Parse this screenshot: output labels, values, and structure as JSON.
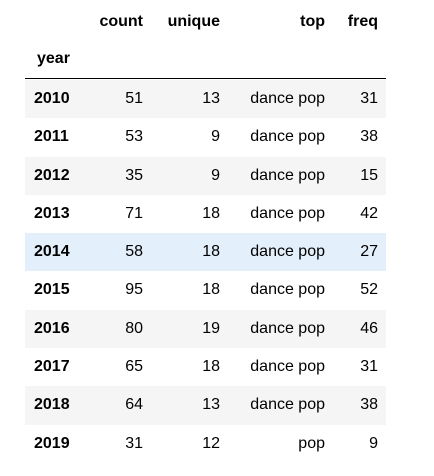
{
  "table": {
    "columns": [
      "count",
      "unique",
      "top",
      "freq"
    ],
    "index_name": "year",
    "rows": [
      {
        "year": "2010",
        "count": "51",
        "unique": "13",
        "top": "dance pop",
        "freq": "31"
      },
      {
        "year": "2011",
        "count": "53",
        "unique": "9",
        "top": "dance pop",
        "freq": "38"
      },
      {
        "year": "2012",
        "count": "35",
        "unique": "9",
        "top": "dance pop",
        "freq": "15"
      },
      {
        "year": "2013",
        "count": "71",
        "unique": "18",
        "top": "dance pop",
        "freq": "42"
      },
      {
        "year": "2014",
        "count": "58",
        "unique": "18",
        "top": "dance pop",
        "freq": "27"
      },
      {
        "year": "2015",
        "count": "95",
        "unique": "18",
        "top": "dance pop",
        "freq": "52"
      },
      {
        "year": "2016",
        "count": "80",
        "unique": "19",
        "top": "dance pop",
        "freq": "46"
      },
      {
        "year": "2017",
        "count": "65",
        "unique": "18",
        "top": "dance pop",
        "freq": "31"
      },
      {
        "year": "2018",
        "count": "64",
        "unique": "13",
        "top": "dance pop",
        "freq": "38"
      },
      {
        "year": "2019",
        "count": "31",
        "unique": "12",
        "top": "pop",
        "freq": "9"
      }
    ],
    "hovered_row_year": "2014"
  },
  "colors": {
    "hover_row": "#e3effa",
    "odd_row": "#f5f5f5",
    "even_row": "#ffffff"
  }
}
